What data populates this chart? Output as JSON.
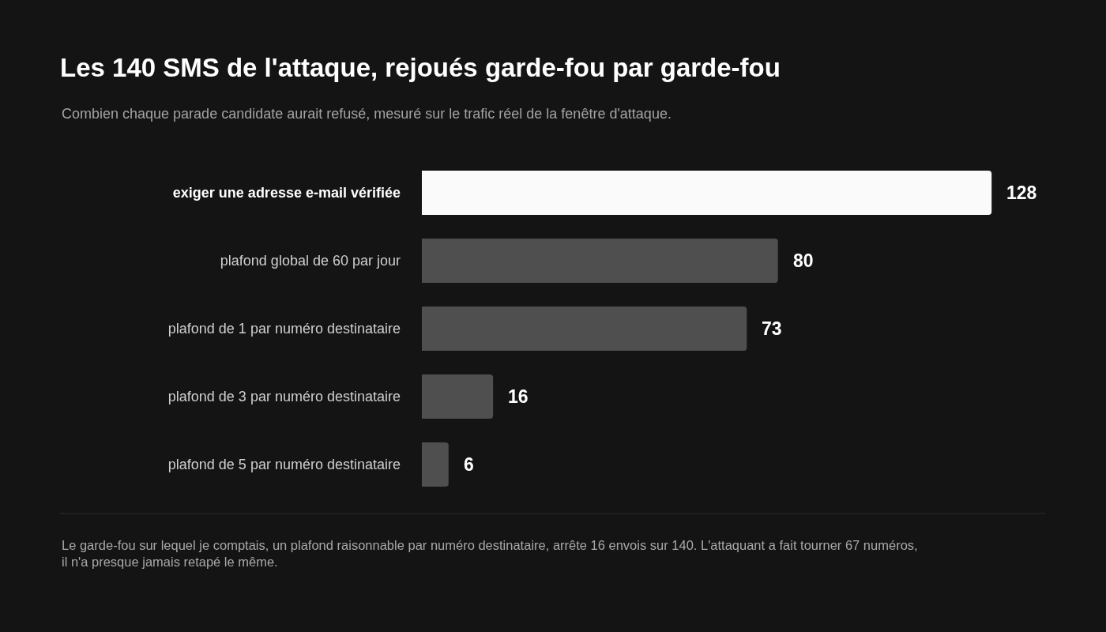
{
  "chart_data": {
    "type": "bar",
    "orientation": "horizontal",
    "title": "Les 140 SMS de l'attaque, rejoués garde-fou par garde-fou",
    "subtitle": "Combien chaque parade candidate aurait refusé, mesuré sur le trafic réel de la fenêtre d'attaque.",
    "categories": [
      "exiger une adresse e-mail vérifiée",
      "plafond global de 60 par jour",
      "plafond de 1 par numéro destinataire",
      "plafond de 3 par numéro destinataire",
      "plafond de 5 par numéro destinataire"
    ],
    "values": [
      128,
      80,
      73,
      16,
      6
    ],
    "colors": [
      "#fafafa",
      "#4f4f4f",
      "#4f4f4f",
      "#4f4f4f",
      "#4f4f4f"
    ],
    "data_labels": true,
    "tick_labels": "y",
    "annotations": [
      "Le garde-fou sur lequel je comptais, un plafond raisonnable par numéro destinataire, arrête 16 envois sur 140. L'attaquant a fait tourner 67 numéros, il n'a presque jamais retapé le même."
    ]
  }
}
